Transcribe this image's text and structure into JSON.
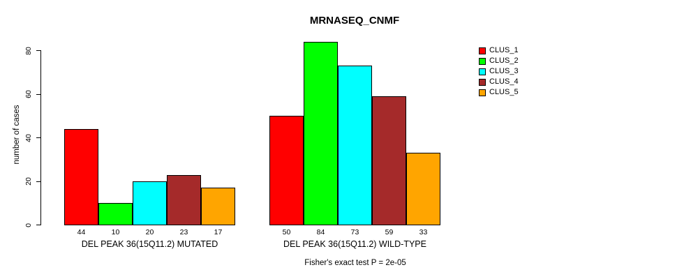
{
  "chart_data": {
    "type": "bar",
    "title": "MRNASEQ_CNMF",
    "ylabel": "number of cases",
    "ylim": [
      0,
      80
    ],
    "yticks": [
      0,
      20,
      40,
      60,
      80
    ],
    "grid": false,
    "legend_position": "top-right",
    "series": [
      {
        "name": "CLUS_1",
        "color": "#FF0000"
      },
      {
        "name": "CLUS_2",
        "color": "#00FF00"
      },
      {
        "name": "CLUS_3",
        "color": "#00FFFF"
      },
      {
        "name": "CLUS_4",
        "color": "#A52A2A"
      },
      {
        "name": "CLUS_5",
        "color": "#FFA500"
      }
    ],
    "groups": [
      {
        "label": "DEL PEAK 36(15Q11.2) MUTATED",
        "values": [
          44,
          10,
          20,
          23,
          17
        ]
      },
      {
        "label": "DEL PEAK 36(15Q11.2) WILD-TYPE",
        "values": [
          50,
          84,
          73,
          59,
          33
        ]
      }
    ],
    "bar_value_labels_shown": true,
    "annotation": "Fisher's exact test P = 2e-05"
  }
}
